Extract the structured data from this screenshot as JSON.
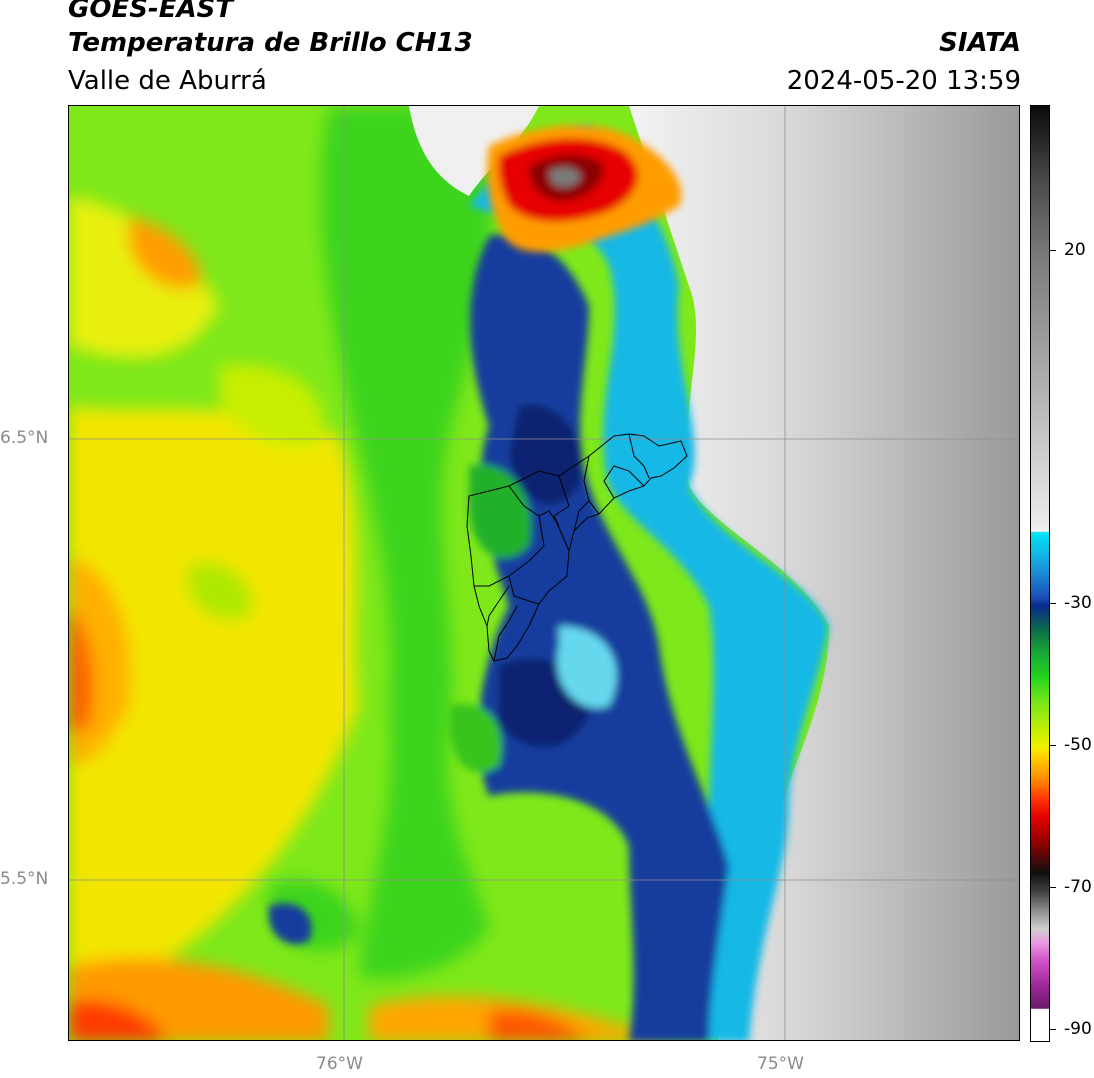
{
  "header": {
    "satellite": "GOES-EAST",
    "product": "Temperatura de Brillo CH13",
    "region": "Valle de Aburrá",
    "agency": "SIATA",
    "datetime": "2024-05-20 13:59"
  },
  "map": {
    "lat_labels": [
      "6.5°N",
      "5.5°N"
    ],
    "lon_labels": [
      "76°W",
      "75°W"
    ]
  },
  "colorbar": {
    "ticks": [
      "20",
      "-30",
      "-50",
      "-70",
      "-90"
    ],
    "colors": {
      "warm_gray": "#d8d8d8",
      "cyan": "#00e5f5",
      "blue": "#0a2a8a",
      "green": "#22d31e",
      "yellow": "#f2f200",
      "orange": "#ff8c00",
      "red": "#e60000",
      "black": "#101010",
      "magenta": "#a0289a"
    }
  }
}
